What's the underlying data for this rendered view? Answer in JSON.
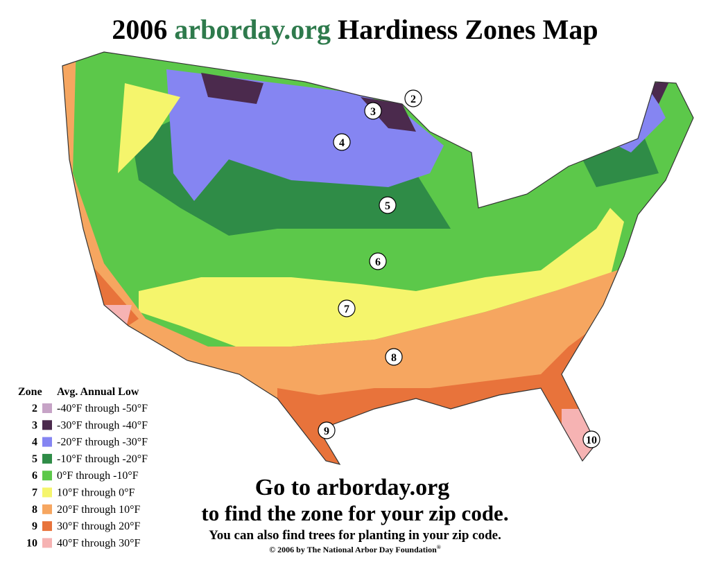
{
  "title": {
    "year": "2006",
    "site": "arborday.org",
    "rest": "Hardiness Zones Map"
  },
  "legend": {
    "header_zone": "Zone",
    "header_low": "Avg. Annual Low",
    "rows": [
      {
        "zone": "2",
        "range": "-40°F through -50°F",
        "color": "#c6a3c6"
      },
      {
        "zone": "3",
        "range": "-30°F through -40°F",
        "color": "#4b2a4d"
      },
      {
        "zone": "4",
        "range": "-20°F through -30°F",
        "color": "#8585f2"
      },
      {
        "zone": "5",
        "range": "-10°F through -20°F",
        "color": "#2f8c47"
      },
      {
        "zone": "6",
        "range": "0°F through -10°F",
        "color": "#5cc84a"
      },
      {
        "zone": "7",
        "range": "10°F through 0°F",
        "color": "#f5f56c"
      },
      {
        "zone": "8",
        "range": "20°F through 10°F",
        "color": "#f6a660"
      },
      {
        "zone": "9",
        "range": "30°F through 20°F",
        "color": "#e8733b"
      },
      {
        "zone": "10",
        "range": "40°F through 30°F",
        "color": "#f6b3b3"
      }
    ]
  },
  "map_labels": [
    "2",
    "3",
    "4",
    "5",
    "6",
    "7",
    "8",
    "9",
    "10"
  ],
  "footer": {
    "line1": "Go to arborday.org",
    "line2": "to find the zone for your zip code.",
    "line3": "You can also find trees for planting in your zip code.",
    "copyright": "© 2006 by The National Arbor Day Foundation",
    "reg": "®"
  }
}
